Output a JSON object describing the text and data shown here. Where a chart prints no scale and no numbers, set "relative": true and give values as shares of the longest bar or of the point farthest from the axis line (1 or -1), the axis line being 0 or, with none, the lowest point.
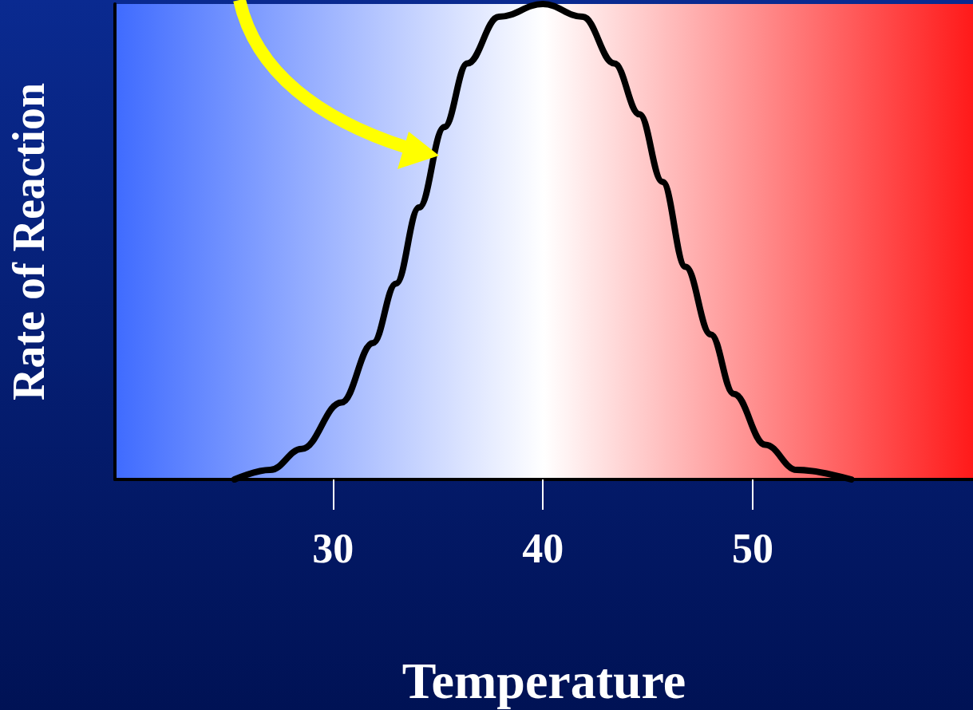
{
  "chart_data": {
    "type": "line",
    "xlabel": "Temperature",
    "ylabel": "Rate of Reaction",
    "relative": true,
    "marker": "none",
    "line_style": "solid",
    "color": "#000000",
    "x": [
      25.3,
      27.0,
      28.5,
      30.4,
      31.9,
      33.0,
      34.1,
      35.3,
      36.4,
      37.9,
      40.0,
      41.9,
      43.4,
      44.6,
      45.7,
      46.8,
      48.0,
      49.1,
      50.6,
      52.1,
      54.7
    ],
    "values": [
      0,
      0.02,
      0.064,
      0.162,
      0.287,
      0.412,
      0.572,
      0.741,
      0.875,
      0.973,
      1,
      0.973,
      0.875,
      0.768,
      0.626,
      0.447,
      0.305,
      0.18,
      0.073,
      0.02,
      0
    ],
    "xlim": [
      19.6,
      60.5
    ],
    "xticks": [
      30,
      40,
      50
    ]
  }
}
